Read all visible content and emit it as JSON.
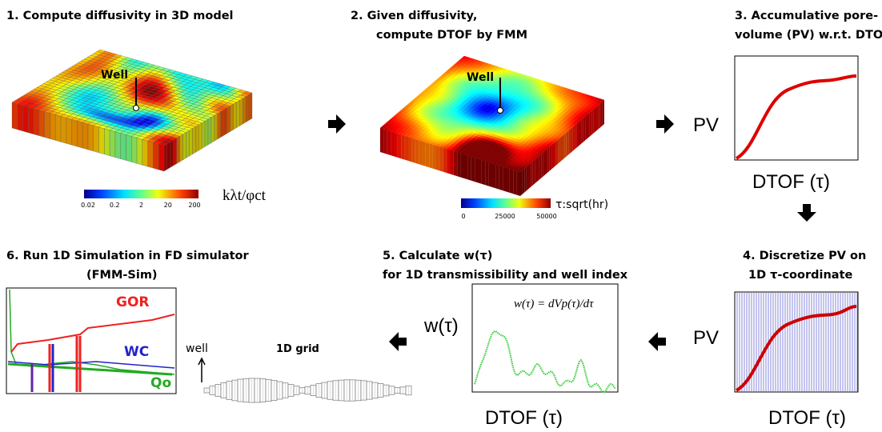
{
  "panels": {
    "p1": {
      "title": "1. Compute diffusivity in 3D model",
      "well": "Well",
      "colorbar_ticks": [
        "0.02",
        "0.2",
        "2",
        "20",
        "200"
      ],
      "colorbar_label": "kλt/φct"
    },
    "p2": {
      "title": [
        "2. Given diffusivity,",
        "compute DTOF by FMM"
      ],
      "well": "Well",
      "colorbar_ticks": [
        "0",
        "25000",
        "50000"
      ],
      "colorbar_label": "τ:sqrt(hr)"
    },
    "p3": {
      "title": [
        "3. Accumulative pore-",
        "volume (PV) w.r.t. DTOF"
      ],
      "y_label": "PV",
      "x_label": "DTOF (τ)"
    },
    "p4": {
      "title": [
        "4. Discretize PV on",
        "1D τ-coordinate"
      ],
      "y_label": "PV",
      "x_label": "DTOF (τ)"
    },
    "p5": {
      "title": [
        "5. Calculate w(τ)",
        "for 1D transmissibility and well index"
      ],
      "y_label": "w(τ)",
      "formula": "w(τ) = dVp(τ)/dτ",
      "x_label": "DTOF (τ)"
    },
    "p6": {
      "title": [
        "6. Run 1D Simulation in FD simulator",
        "(FMM-Sim)"
      ],
      "curves": [
        "GOR",
        "WC",
        "Qo"
      ],
      "well": "well",
      "grid_label": "1D grid"
    }
  }
}
